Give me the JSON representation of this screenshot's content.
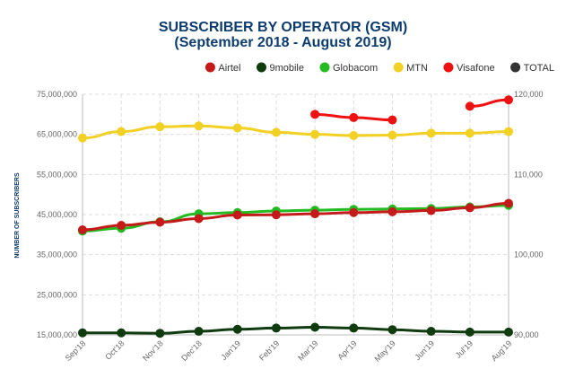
{
  "chart_data": {
    "type": "line",
    "title": "SUBSCRIBER BY OPERATOR (GSM)",
    "subtitle": "(September 2018 - August 2019)",
    "ylabel": "NUMBER OF SUBSCRIBERS",
    "xlabel": "",
    "categories": [
      "Sep'18",
      "Oct'18",
      "Nov'18",
      "Dec'18",
      "Jan'19",
      "Feb'19",
      "Mar'19",
      "Apr'19",
      "May'19",
      "Jun'19",
      "Jul'19",
      "Aug'19"
    ],
    "ylim_left": [
      15000000,
      75000000
    ],
    "ylim_right": [
      90000,
      120000
    ],
    "left_ticks": [
      15000000,
      25000000,
      35000000,
      45000000,
      55000000,
      65000000,
      75000000
    ],
    "left_tick_labels": [
      "15,000,000",
      "25,000,000",
      "35,000,000",
      "45,000,000",
      "55,000,000",
      "65,000,000",
      "75,000,000"
    ],
    "right_ticks": [
      90000,
      100000,
      110000,
      120000
    ],
    "right_tick_labels": [
      "90,000",
      "100,000",
      "110,000",
      "120,000"
    ],
    "grid": true,
    "legend_position": "top-right",
    "series": [
      {
        "name": "Airtel",
        "color": "#c41a1a",
        "axis": "left",
        "values": [
          41200000,
          42300000,
          43100000,
          44000000,
          44900000,
          44950000,
          45200000,
          45500000,
          45700000,
          46000000,
          46700000,
          47800000
        ]
      },
      {
        "name": "9mobile",
        "color": "#0f3b0f",
        "axis": "left",
        "values": [
          15500000,
          15500000,
          15400000,
          15900000,
          16400000,
          16700000,
          16900000,
          16700000,
          16300000,
          15900000,
          15700000,
          15700000
        ]
      },
      {
        "name": "Globacom",
        "color": "#22bb22",
        "axis": "left",
        "values": [
          40900000,
          41600000,
          43200000,
          45200000,
          45500000,
          45900000,
          46100000,
          46300000,
          46400000,
          46500000,
          46900000,
          47300000
        ]
      },
      {
        "name": "MTN",
        "color": "#f2d024",
        "axis": "left",
        "values": [
          64100000,
          65700000,
          66900000,
          67100000,
          66600000,
          65500000,
          65000000,
          64700000,
          64800000,
          65300000,
          65300000,
          65700000
        ]
      },
      {
        "name": "Visafone",
        "color": "#ee1111",
        "axis": "right",
        "values": [
          null,
          null,
          null,
          null,
          null,
          null,
          117500,
          117100,
          116800,
          null,
          118500,
          119300
        ]
      },
      {
        "name": "TOTAL",
        "color": "#333333",
        "axis": "left",
        "values": [
          null,
          null,
          null,
          null,
          null,
          null,
          null,
          null,
          null,
          null,
          null,
          null
        ]
      }
    ]
  }
}
